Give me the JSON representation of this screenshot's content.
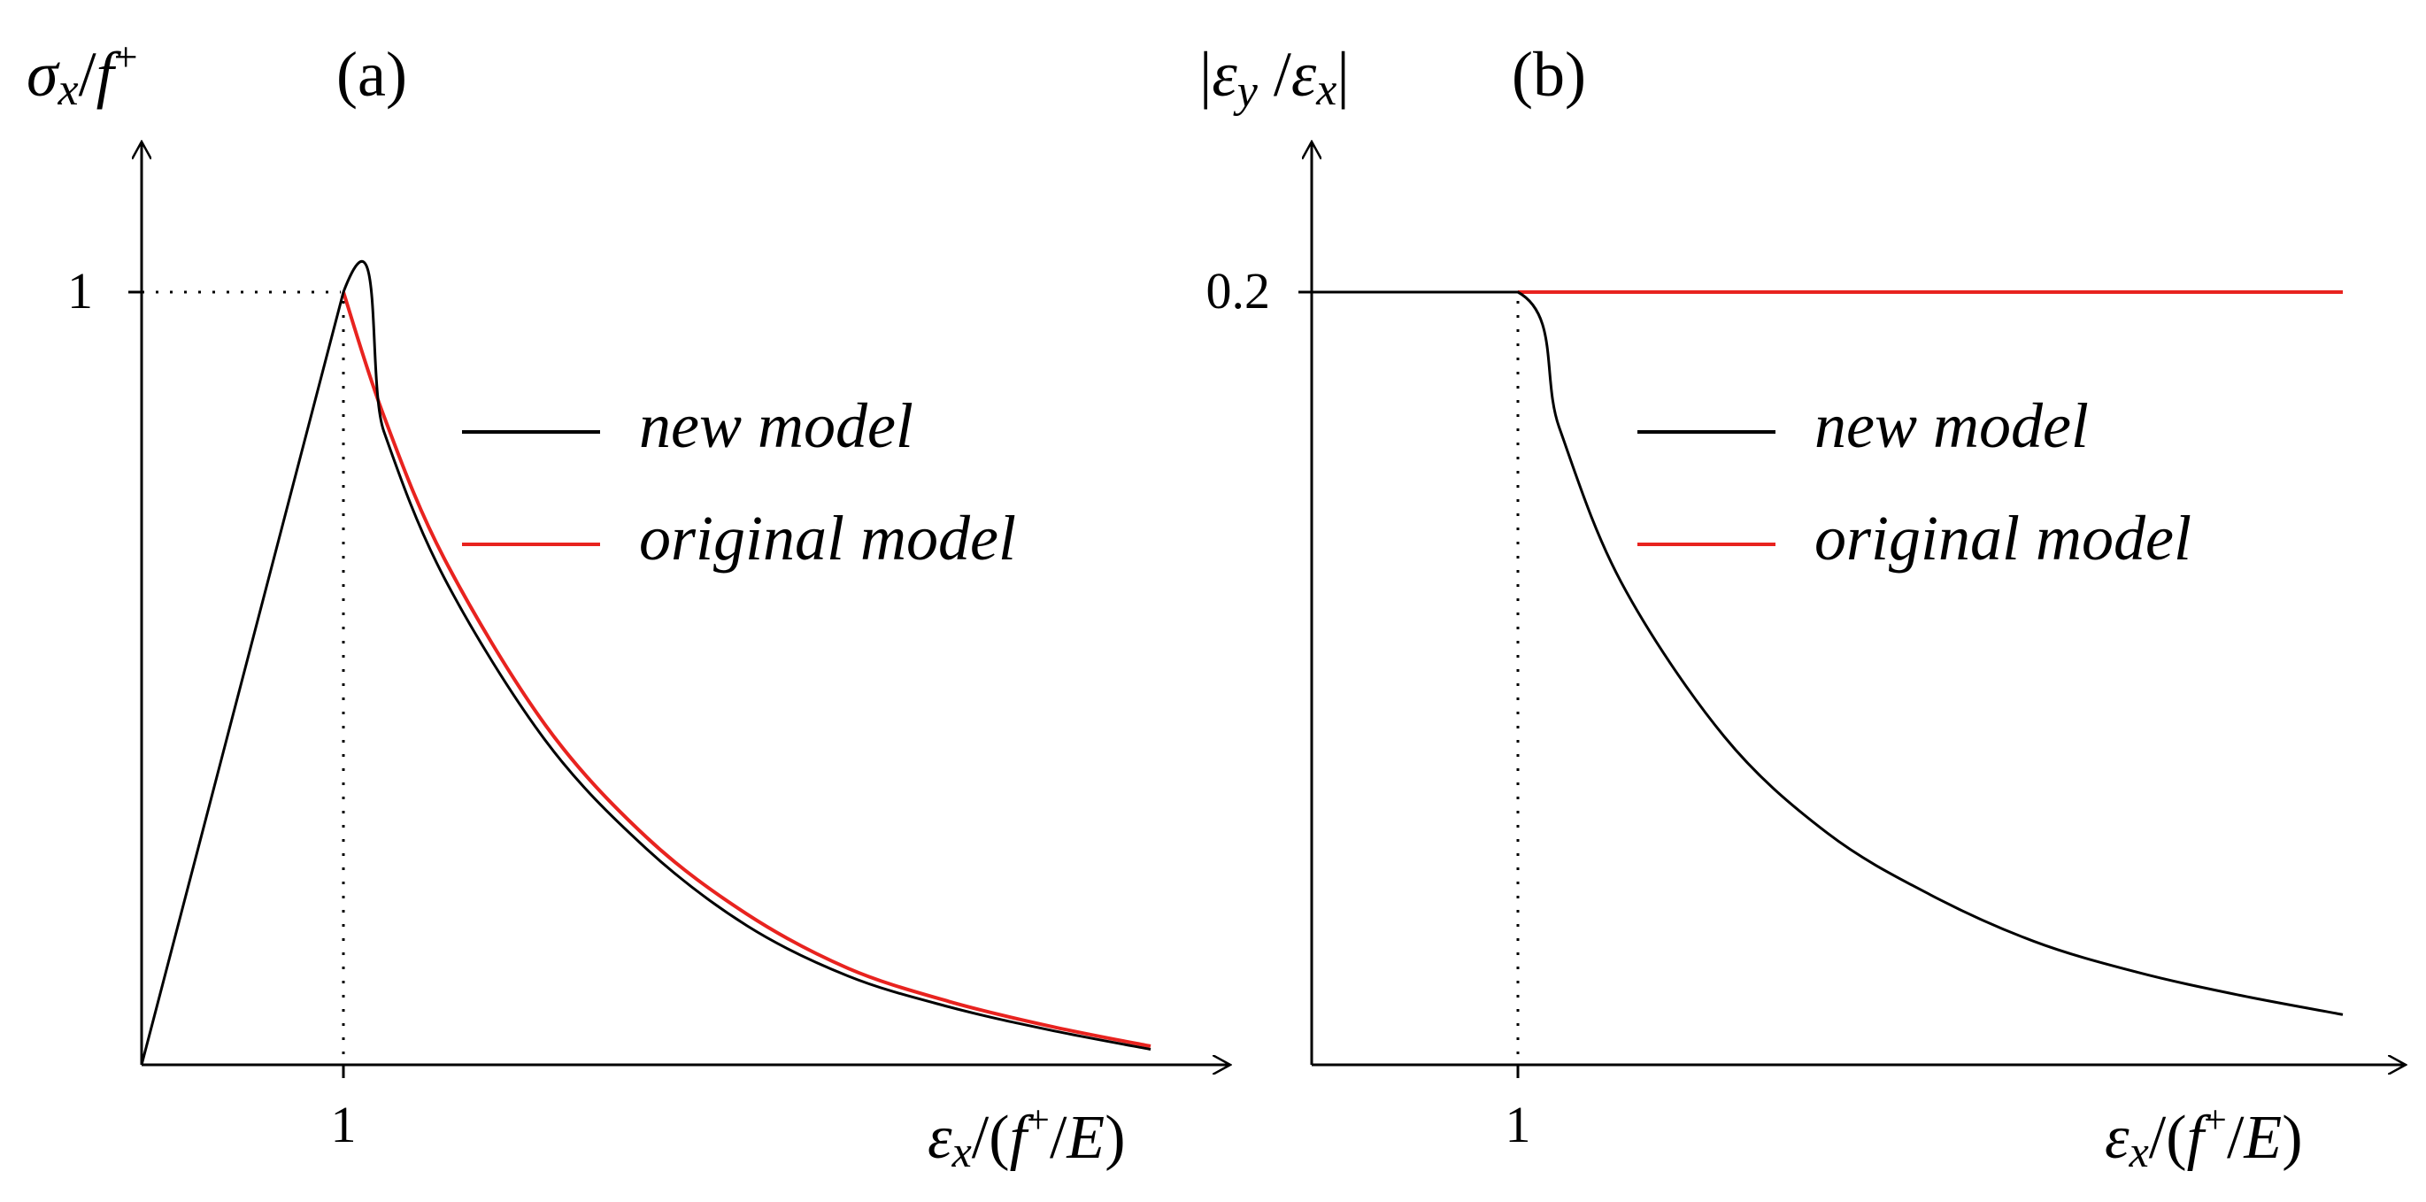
{
  "chart_data": [
    {
      "type": "line",
      "panel_label": "(a)",
      "ylabel": {
        "base": "σ",
        "sub": "x",
        "slash": "/",
        "f": "f",
        "sup": "+"
      },
      "xlabel": {
        "eps": "ε",
        "sub": "x",
        "open": "/(",
        "f": "f",
        "sup": "+",
        "slashE": "/",
        "E": "E",
        "close": ")"
      },
      "xlim": [
        0,
        5.0
      ],
      "ylim": [
        0,
        1.2
      ],
      "x_ticks": [
        "1"
      ],
      "y_ticks": [
        "1"
      ],
      "legend": {
        "position": "upper-right",
        "entries": [
          "new model",
          "original model"
        ]
      },
      "series": [
        {
          "name": "new model",
          "color": "#000000",
          "x": [
            0,
            1,
            1.2,
            1.5,
            2,
            2.5,
            3,
            3.5,
            4,
            4.5,
            5.0
          ],
          "y": [
            0,
            1,
            0.82,
            0.63,
            0.42,
            0.28,
            0.18,
            0.115,
            0.075,
            0.045,
            0.02
          ]
        },
        {
          "name": "original model",
          "color": "#e8231f",
          "x": [
            1,
            1.2,
            1.5,
            2,
            2.5,
            3,
            3.5,
            4,
            4.5,
            5.0
          ],
          "y": [
            1,
            0.84,
            0.655,
            0.44,
            0.295,
            0.195,
            0.125,
            0.082,
            0.05,
            0.024
          ]
        }
      ]
    },
    {
      "type": "line",
      "panel_label": "(b)",
      "ylabel": {
        "bar1": "|",
        "eps1": "ε",
        "sub1": "y",
        "slash": " /",
        "eps2": "ε",
        "sub2": "x",
        "bar2": "|"
      },
      "xlabel": {
        "eps": "ε",
        "sub": "x",
        "open": "/(",
        "f": "f",
        "sup": "+",
        "slashE": "/",
        "E": "E",
        "close": ")"
      },
      "xlim": [
        0,
        5.0
      ],
      "ylim": [
        0,
        0.24
      ],
      "x_ticks": [
        "1"
      ],
      "y_ticks": [
        "0.2"
      ],
      "legend": {
        "position": "upper-right",
        "entries": [
          "new model",
          "original model"
        ]
      },
      "series": [
        {
          "name": "new model",
          "color": "#000000",
          "x": [
            0,
            1,
            1.2,
            1.5,
            2,
            2.5,
            3,
            3.5,
            4,
            4.5,
            5.0
          ],
          "y": [
            0.2,
            0.2,
            0.165,
            0.125,
            0.085,
            0.06,
            0.044,
            0.032,
            0.024,
            0.018,
            0.013
          ]
        },
        {
          "name": "original model",
          "color": "#e8231f",
          "x": [
            1,
            5.0
          ],
          "y": [
            0.2,
            0.2
          ]
        }
      ]
    }
  ]
}
